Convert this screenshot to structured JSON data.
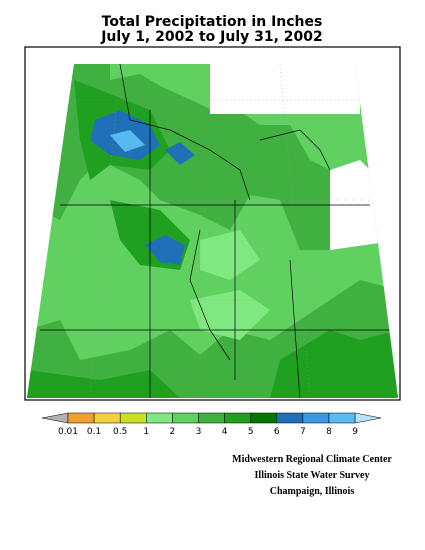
{
  "title": [
    "Total Precipitation in Inches",
    "July 1, 2002 to July 31, 2002"
  ],
  "legend": {
    "labels": [
      "0.01",
      "0.1",
      "0.5",
      "1",
      "2",
      "3",
      "4",
      "5",
      "6",
      "7",
      "8",
      "9"
    ],
    "colors": [
      "#b0b0b0",
      "#f0a030",
      "#f0d040",
      "#c8e020",
      "#80e880",
      "#60d060",
      "#40b040",
      "#20a020",
      "#007800",
      "#2070b8",
      "#3898e0",
      "#58b8f0",
      "#b8e0f8"
    ]
  },
  "credits": [
    "Midwestern Regional Climate Center",
    "Illinois State Water Survey",
    "Champaign, Illinois"
  ]
}
